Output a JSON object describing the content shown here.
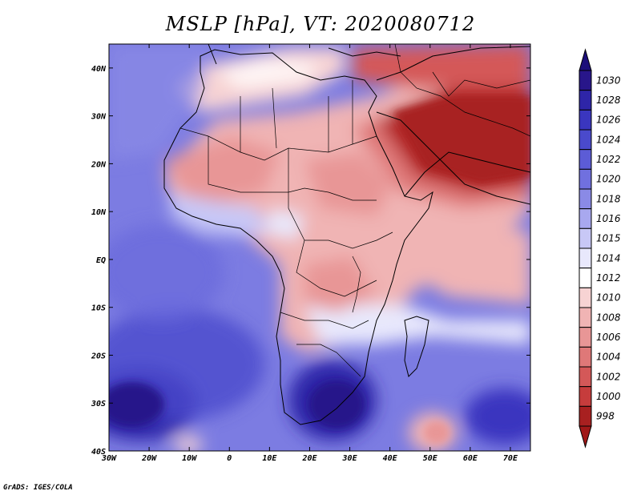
{
  "title": "MSLP [hPa], VT: 2020080712",
  "footer": "GrADS: IGES/COLA",
  "map": {
    "lon_range": [
      -30,
      75
    ],
    "lat_range": [
      -40,
      45
    ],
    "x_ticks": [
      {
        "value": -30,
        "label": "30W"
      },
      {
        "value": -20,
        "label": "20W"
      },
      {
        "value": -10,
        "label": "10W"
      },
      {
        "value": 0,
        "label": "0"
      },
      {
        "value": 10,
        "label": "10E"
      },
      {
        "value": 20,
        "label": "20E"
      },
      {
        "value": 30,
        "label": "30E"
      },
      {
        "value": 40,
        "label": "40E"
      },
      {
        "value": 50,
        "label": "50E"
      },
      {
        "value": 60,
        "label": "60E"
      },
      {
        "value": 70,
        "label": "70E"
      }
    ],
    "y_ticks": [
      {
        "value": 40,
        "label": "40N"
      },
      {
        "value": 30,
        "label": "30N"
      },
      {
        "value": 20,
        "label": "20N"
      },
      {
        "value": 10,
        "label": "10N"
      },
      {
        "value": 0,
        "label": "EQ"
      },
      {
        "value": -10,
        "label": "10S"
      },
      {
        "value": -20,
        "label": "20S"
      },
      {
        "value": -30,
        "label": "30S"
      },
      {
        "value": -40,
        "label": "40S"
      }
    ]
  },
  "colorbar": {
    "levels": [
      {
        "label": "1030",
        "color": "#28168a"
      },
      {
        "label": "1028",
        "color": "#2e25a8"
      },
      {
        "label": "1026",
        "color": "#3a36bf"
      },
      {
        "label": "1024",
        "color": "#4a4acc"
      },
      {
        "label": "1022",
        "color": "#5c5cd6"
      },
      {
        "label": "1020",
        "color": "#7070df"
      },
      {
        "label": "1018",
        "color": "#8a8ae6"
      },
      {
        "label": "1016",
        "color": "#a8a8ef"
      },
      {
        "label": "1015",
        "color": "#c8c8f6"
      },
      {
        "label": "1014",
        "color": "#e8e8fc"
      },
      {
        "label": "1012",
        "color": "#ffffff"
      },
      {
        "label": "1010",
        "color": "#f7d3d3"
      },
      {
        "label": "1008",
        "color": "#f0b4b4"
      },
      {
        "label": "1006",
        "color": "#e89696"
      },
      {
        "label": "1004",
        "color": "#df7878"
      },
      {
        "label": "1002",
        "color": "#d45858"
      },
      {
        "label": "1000",
        "color": "#c63c3c"
      },
      {
        "label": "998",
        "color": "#a82020"
      }
    ],
    "top_color": "#1c0e7a",
    "bottom_color": "#a01818"
  }
}
